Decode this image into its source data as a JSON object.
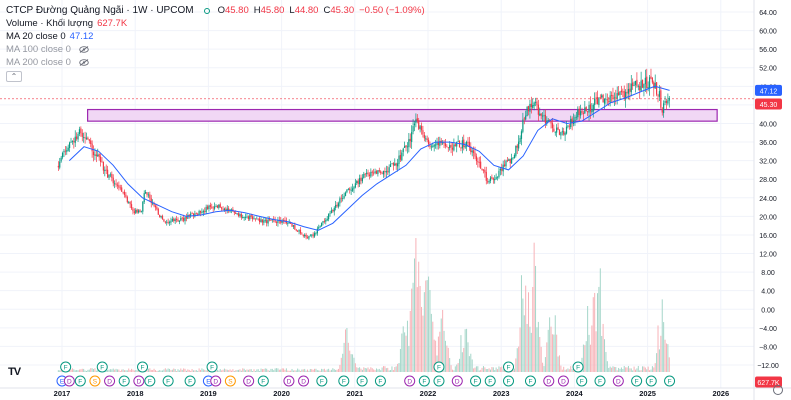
{
  "header": {
    "symbol_title": "CTCP Đường Quảng Ngãi · 1W · UPCOM",
    "ohlc": [
      {
        "label": "O",
        "value": "45.80"
      },
      {
        "label": "H",
        "value": "45.80"
      },
      {
        "label": "L",
        "value": "44.80"
      },
      {
        "label": "C",
        "value": "45.30"
      }
    ],
    "change": "−0.50 (−1.09%)"
  },
  "indicators": {
    "volume_label": "Volume · Khối lượng",
    "volume_value": "627.7K",
    "ma20_label": "MA 20 close 0",
    "ma20_value": "47.12",
    "ma100_label": "MA 100 close 0",
    "ma200_label": "MA 200 close 0",
    "collapse_glyph": "⌃"
  },
  "branding": {
    "logo": "TV"
  },
  "colors": {
    "up": "#089981",
    "down": "#f23645",
    "ma": "#2962ff",
    "vol_up": "#a5d6c9",
    "vol_down": "#f7b2b7",
    "zone_fill": "#f1d7f5",
    "zone_stroke": "#9c27b0",
    "grid": "#f0f3fa",
    "axis_text": "#131722"
  },
  "icons": {
    "visibility": "eye-off-icon",
    "settings": "gear-icon",
    "event_markers": [
      "F",
      "D",
      "S",
      "E"
    ]
  },
  "chart_data": {
    "type": "candlestick",
    "y_ticks": [
      "64.00",
      "60.00",
      "56.00",
      "52.00",
      "48.00",
      "44.00",
      "40.00",
      "36.00",
      "32.00",
      "28.00",
      "24.00",
      "20.00",
      "16.00",
      "12.00",
      "8.00",
      "4.00",
      "0.00",
      "−4.00",
      "−8.00",
      "−12.00"
    ],
    "x_ticks": [
      "2017",
      "2018",
      "2019",
      "2020",
      "2021",
      "2022",
      "2023",
      "2024",
      "2025",
      "2026"
    ],
    "price_labels": {
      "ma20": "47.12",
      "last": "45.30",
      "volume": "627.7K"
    },
    "ylim": [
      -14,
      66
    ],
    "xlim": [
      2016.9,
      2026.2
    ],
    "zone": {
      "low": 40.5,
      "high": 43.0,
      "from": 2017.35,
      "to": 2025.95
    },
    "price_path": [
      [
        2016.95,
        30
      ],
      [
        2017.05,
        34
      ],
      [
        2017.15,
        36
      ],
      [
        2017.25,
        38
      ],
      [
        2017.35,
        37
      ],
      [
        2017.45,
        34
      ],
      [
        2017.6,
        30
      ],
      [
        2017.75,
        27
      ],
      [
        2017.9,
        24
      ],
      [
        2018.0,
        21
      ],
      [
        2018.1,
        21
      ],
      [
        2018.15,
        26
      ],
      [
        2018.25,
        23
      ],
      [
        2018.35,
        20
      ],
      [
        2018.45,
        19
      ],
      [
        2018.6,
        19
      ],
      [
        2018.75,
        20
      ],
      [
        2018.9,
        21
      ],
      [
        2019.05,
        22
      ],
      [
        2019.2,
        22
      ],
      [
        2019.35,
        21
      ],
      [
        2019.5,
        20
      ],
      [
        2019.65,
        19.5
      ],
      [
        2019.8,
        19
      ],
      [
        2019.95,
        19
      ],
      [
        2020.1,
        18.5
      ],
      [
        2020.25,
        17
      ],
      [
        2020.35,
        15.5
      ],
      [
        2020.45,
        16
      ],
      [
        2020.55,
        18
      ],
      [
        2020.65,
        20
      ],
      [
        2020.75,
        22
      ],
      [
        2020.85,
        24
      ],
      [
        2020.95,
        26
      ],
      [
        2021.05,
        27
      ],
      [
        2021.15,
        29
      ],
      [
        2021.3,
        29.5
      ],
      [
        2021.45,
        30
      ],
      [
        2021.55,
        31
      ],
      [
        2021.65,
        33
      ],
      [
        2021.75,
        36
      ],
      [
        2021.85,
        40
      ],
      [
        2021.95,
        38
      ],
      [
        2022.05,
        35
      ],
      [
        2022.15,
        36
      ],
      [
        2022.3,
        35
      ],
      [
        2022.45,
        35.5
      ],
      [
        2022.55,
        36
      ],
      [
        2022.65,
        33
      ],
      [
        2022.75,
        30
      ],
      [
        2022.85,
        27.5
      ],
      [
        2022.95,
        28.5
      ],
      [
        2023.05,
        31
      ],
      [
        2023.15,
        32
      ],
      [
        2023.25,
        36
      ],
      [
        2023.35,
        42
      ],
      [
        2023.45,
        45
      ],
      [
        2023.55,
        42
      ],
      [
        2023.65,
        40.5
      ],
      [
        2023.75,
        39
      ],
      [
        2023.85,
        38
      ],
      [
        2023.95,
        40
      ],
      [
        2024.05,
        42
      ],
      [
        2024.2,
        43
      ],
      [
        2024.35,
        45
      ],
      [
        2024.45,
        46
      ],
      [
        2024.55,
        45.5
      ],
      [
        2024.65,
        46
      ],
      [
        2024.75,
        47
      ],
      [
        2024.85,
        48
      ],
      [
        2024.95,
        48.5
      ],
      [
        2025.05,
        49
      ],
      [
        2025.12,
        48
      ],
      [
        2025.18,
        46
      ],
      [
        2025.22,
        43
      ],
      [
        2025.26,
        45
      ],
      [
        2025.3,
        45.3
      ]
    ],
    "ma20_path": [
      [
        2017.1,
        32
      ],
      [
        2017.3,
        35
      ],
      [
        2017.5,
        34
      ],
      [
        2017.7,
        31
      ],
      [
        2017.9,
        27
      ],
      [
        2018.1,
        24
      ],
      [
        2018.3,
        22.5
      ],
      [
        2018.5,
        21
      ],
      [
        2018.7,
        20
      ],
      [
        2018.9,
        20.3
      ],
      [
        2019.1,
        21
      ],
      [
        2019.3,
        21.3
      ],
      [
        2019.5,
        20.8
      ],
      [
        2019.7,
        20
      ],
      [
        2019.9,
        19.3
      ],
      [
        2020.1,
        18.8
      ],
      [
        2020.3,
        17.8
      ],
      [
        2020.5,
        17
      ],
      [
        2020.7,
        18.5
      ],
      [
        2020.9,
        21.5
      ],
      [
        2021.1,
        24.5
      ],
      [
        2021.3,
        27
      ],
      [
        2021.5,
        29
      ],
      [
        2021.7,
        31
      ],
      [
        2021.9,
        34.5
      ],
      [
        2022.1,
        36
      ],
      [
        2022.3,
        36
      ],
      [
        2022.5,
        35.5
      ],
      [
        2022.7,
        34
      ],
      [
        2022.9,
        31
      ],
      [
        2023.1,
        30
      ],
      [
        2023.3,
        33
      ],
      [
        2023.5,
        38.5
      ],
      [
        2023.7,
        41
      ],
      [
        2023.9,
        40
      ],
      [
        2024.1,
        40.5
      ],
      [
        2024.3,
        42.5
      ],
      [
        2024.5,
        44.5
      ],
      [
        2024.7,
        45.5
      ],
      [
        2024.9,
        46.8
      ],
      [
        2025.1,
        48
      ],
      [
        2025.3,
        47.12
      ]
    ],
    "volume_peaks": [
      [
        2020.9,
        1.0
      ],
      [
        2021.7,
        1.3
      ],
      [
        2021.85,
        2.8
      ],
      [
        2022.0,
        3.0
      ],
      [
        2022.2,
        1.4
      ],
      [
        2022.5,
        1.1
      ],
      [
        2023.3,
        2.2
      ],
      [
        2023.45,
        2.6
      ],
      [
        2023.7,
        1.8
      ],
      [
        2024.2,
        1.5
      ],
      [
        2024.35,
        2.3
      ],
      [
        2025.2,
        1.6
      ]
    ],
    "events": [
      {
        "x": 2017.05,
        "row": 1,
        "label": "F"
      },
      {
        "x": 2017.55,
        "row": 1,
        "label": "F"
      },
      {
        "x": 2018.1,
        "row": 1,
        "label": "F"
      },
      {
        "x": 2019.05,
        "row": 1,
        "label": "F"
      },
      {
        "x": 2022.15,
        "row": 1,
        "label": "F"
      },
      {
        "x": 2023.1,
        "row": 1,
        "label": "F"
      },
      {
        "x": 2024.05,
        "row": 1,
        "label": "F"
      },
      {
        "x": 2017.0,
        "row": 2,
        "label": "E"
      },
      {
        "x": 2017.1,
        "row": 2,
        "label": "D"
      },
      {
        "x": 2017.25,
        "row": 2,
        "label": "F"
      },
      {
        "x": 2017.45,
        "row": 2,
        "label": "S"
      },
      {
        "x": 2017.65,
        "row": 2,
        "label": "D"
      },
      {
        "x": 2017.85,
        "row": 2,
        "label": "F"
      },
      {
        "x": 2018.05,
        "row": 2,
        "label": "D"
      },
      {
        "x": 2018.2,
        "row": 2,
        "label": "F"
      },
      {
        "x": 2018.45,
        "row": 2,
        "label": "F"
      },
      {
        "x": 2018.75,
        "row": 2,
        "label": "F"
      },
      {
        "x": 2019.0,
        "row": 2,
        "label": "E"
      },
      {
        "x": 2019.1,
        "row": 2,
        "label": "D"
      },
      {
        "x": 2019.3,
        "row": 2,
        "label": "S"
      },
      {
        "x": 2019.55,
        "row": 2,
        "label": "D"
      },
      {
        "x": 2019.75,
        "row": 2,
        "label": "F"
      },
      {
        "x": 2020.1,
        "row": 2,
        "label": "D"
      },
      {
        "x": 2020.3,
        "row": 2,
        "label": "D"
      },
      {
        "x": 2020.55,
        "row": 2,
        "label": "F"
      },
      {
        "x": 2020.85,
        "row": 2,
        "label": "F"
      },
      {
        "x": 2021.1,
        "row": 2,
        "label": "F"
      },
      {
        "x": 2021.35,
        "row": 2,
        "label": "F"
      },
      {
        "x": 2021.75,
        "row": 2,
        "label": "D"
      },
      {
        "x": 2021.95,
        "row": 2,
        "label": "F"
      },
      {
        "x": 2022.15,
        "row": 2,
        "label": "F"
      },
      {
        "x": 2022.4,
        "row": 2,
        "label": "D"
      },
      {
        "x": 2022.65,
        "row": 2,
        "label": "F"
      },
      {
        "x": 2022.85,
        "row": 2,
        "label": "F"
      },
      {
        "x": 2023.1,
        "row": 2,
        "label": "F"
      },
      {
        "x": 2023.4,
        "row": 2,
        "label": "F"
      },
      {
        "x": 2023.65,
        "row": 2,
        "label": "D"
      },
      {
        "x": 2023.85,
        "row": 2,
        "label": "D"
      },
      {
        "x": 2024.1,
        "row": 2,
        "label": "F"
      },
      {
        "x": 2024.35,
        "row": 2,
        "label": "F"
      },
      {
        "x": 2024.6,
        "row": 2,
        "label": "D"
      },
      {
        "x": 2024.85,
        "row": 2,
        "label": "F"
      },
      {
        "x": 2025.05,
        "row": 2,
        "label": "F"
      },
      {
        "x": 2025.3,
        "row": 2,
        "label": "F"
      }
    ]
  }
}
